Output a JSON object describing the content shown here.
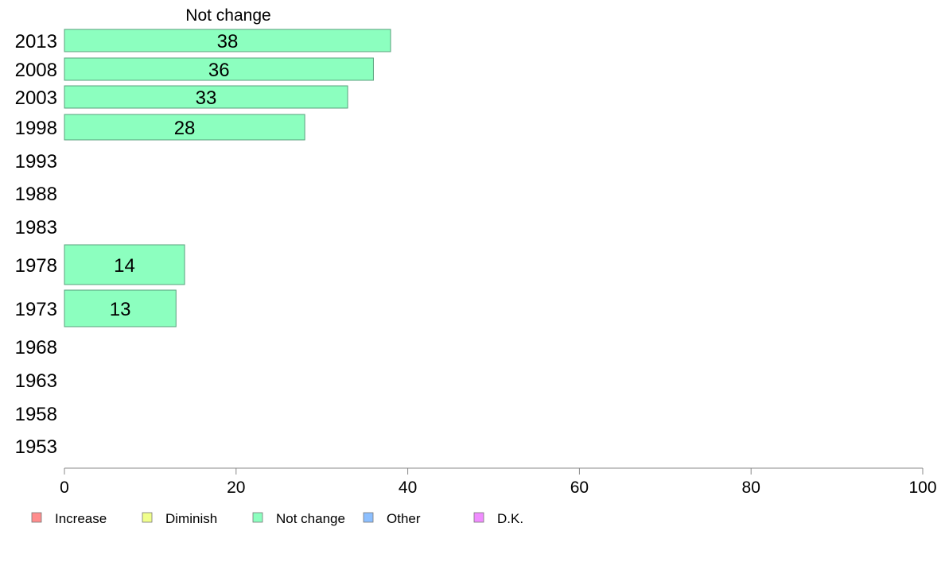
{
  "chart_data": {
    "type": "bar",
    "orientation": "horizontal",
    "title": "Not change",
    "categories": [
      "2013",
      "2008",
      "2003",
      "1998",
      "1993",
      "1988",
      "1983",
      "1978",
      "1973",
      "1968",
      "1963",
      "1958",
      "1953"
    ],
    "series": [
      {
        "name": "Not change",
        "values": [
          38,
          36,
          33,
          28,
          null,
          null,
          null,
          14,
          13,
          null,
          null,
          null,
          null
        ],
        "color": "#8cffbf"
      }
    ],
    "xlim": [
      0,
      100
    ],
    "xticks": [
      0,
      20,
      40,
      60,
      80,
      100
    ],
    "legend": {
      "placement": "bottom-left",
      "entries": [
        {
          "label": "Increase",
          "color": "#ff8c8c"
        },
        {
          "label": "Diminish",
          "color": "#f0ff8c"
        },
        {
          "label": "Not change",
          "color": "#8cffbf"
        },
        {
          "label": "Other",
          "color": "#8cbfff"
        },
        {
          "label": "D.K.",
          "color": "#f08cff"
        }
      ]
    },
    "grid": false
  }
}
